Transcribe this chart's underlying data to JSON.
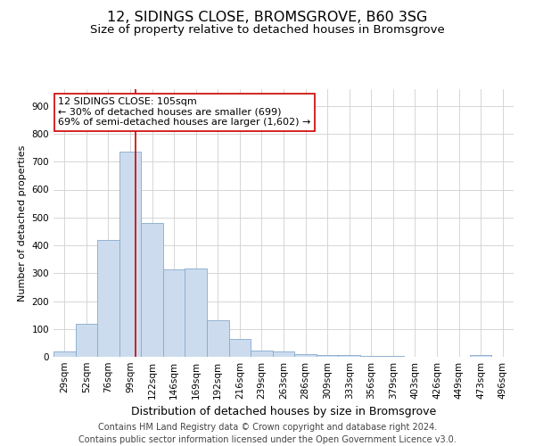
{
  "title": "12, SIDINGS CLOSE, BROMSGROVE, B60 3SG",
  "subtitle": "Size of property relative to detached houses in Bromsgrove",
  "xlabel": "Distribution of detached houses by size in Bromsgrove",
  "ylabel": "Number of detached properties",
  "bar_labels": [
    "29sqm",
    "52sqm",
    "76sqm",
    "99sqm",
    "122sqm",
    "146sqm",
    "169sqm",
    "192sqm",
    "216sqm",
    "239sqm",
    "263sqm",
    "286sqm",
    "309sqm",
    "333sqm",
    "356sqm",
    "379sqm",
    "403sqm",
    "426sqm",
    "449sqm",
    "473sqm",
    "496sqm"
  ],
  "bar_values": [
    18,
    120,
    418,
    735,
    480,
    315,
    318,
    130,
    65,
    23,
    20,
    10,
    8,
    5,
    3,
    2,
    1,
    1,
    0,
    5,
    0
  ],
  "bar_color": "#ccdcee",
  "bar_edge_color": "#85aacb",
  "grid_color": "#d0d0d0",
  "vline_x": 3.26,
  "vline_color": "#cc0000",
  "annotation_label": "12 SIDINGS CLOSE: 105sqm",
  "annotation_line1": "← 30% of detached houses are smaller (699)",
  "annotation_line2": "69% of semi-detached houses are larger (1,602) →",
  "annotation_box_color": "#ffffff",
  "annotation_box_edge": "#cc0000",
  "footer_line1": "Contains HM Land Registry data © Crown copyright and database right 2024.",
  "footer_line2": "Contains public sector information licensed under the Open Government Licence v3.0.",
  "ylim": [
    0,
    960
  ],
  "yticks": [
    0,
    100,
    200,
    300,
    400,
    500,
    600,
    700,
    800,
    900
  ],
  "title_fontsize": 11.5,
  "subtitle_fontsize": 9.5,
  "xlabel_fontsize": 9,
  "ylabel_fontsize": 8,
  "tick_fontsize": 7.5,
  "footer_fontsize": 7,
  "annotation_fontsize": 8
}
